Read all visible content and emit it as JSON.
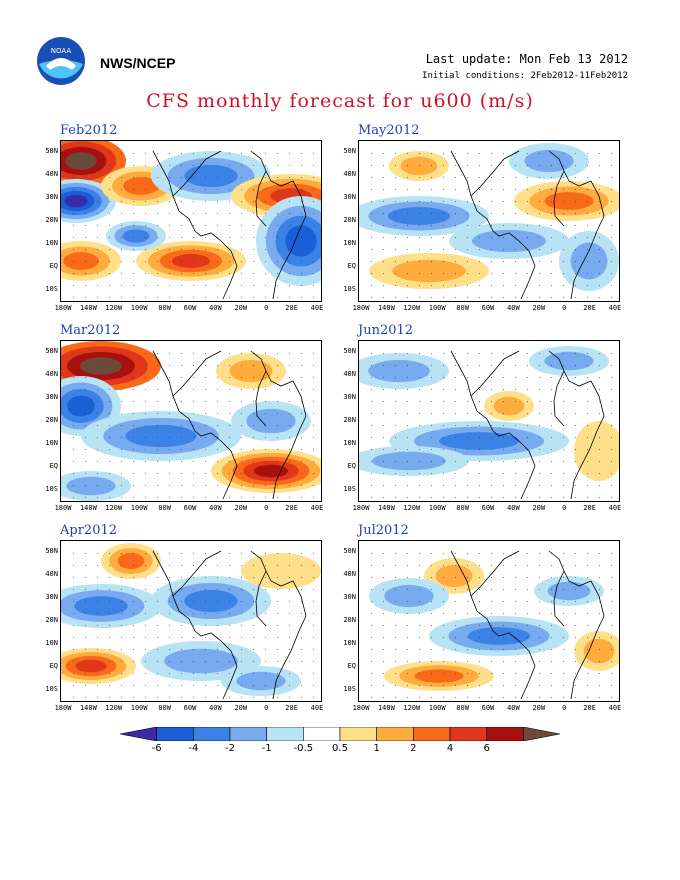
{
  "header": {
    "agency": "NWS/NCEP",
    "last_update": "Last update: Mon Feb 13 2012",
    "initial_conditions": "Initial conditions: 2Feb2012-11Feb2012",
    "title": "CFS monthly forecast for u600 (m/s)"
  },
  "axes": {
    "y_ticks": [
      "50N",
      "40N",
      "30N",
      "20N",
      "10N",
      "EQ",
      "10S"
    ],
    "x_ticks": [
      "180W",
      "140W",
      "120W",
      "100W",
      "80W",
      "60W",
      "40W",
      "20W",
      "0",
      "20E",
      "40E"
    ]
  },
  "panels": [
    {
      "title": "Feb2012"
    },
    {
      "title": "May2012"
    },
    {
      "title": "Mar2012"
    },
    {
      "title": "Jun2012"
    },
    {
      "title": "Apr2012"
    },
    {
      "title": "Jul2012"
    }
  ],
  "colorbar": {
    "labels": [
      "-6",
      "-4",
      "-2",
      "-1",
      "-0.5",
      "0.5",
      "1",
      "2",
      "4",
      "6"
    ],
    "colors": [
      "#3a2aa8",
      "#1b5fd6",
      "#3b82e6",
      "#78aaf0",
      "#b7e3f5",
      "#ffffff",
      "#ffe08a",
      "#ffab3d",
      "#f86a1a",
      "#e0361a",
      "#a81010",
      "#6b4a3a"
    ]
  }
}
